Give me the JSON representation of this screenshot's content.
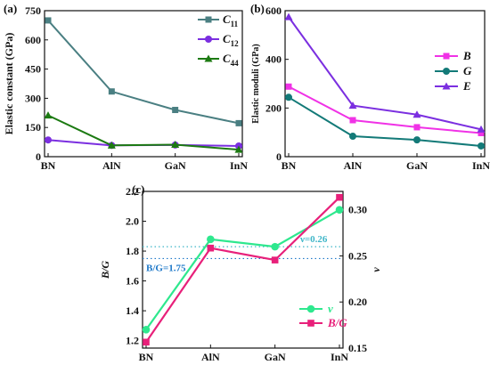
{
  "chart_data": [
    {
      "panel_label": "(a)",
      "type": "line",
      "categories": [
        "BN",
        "AlN",
        "GaN",
        "InN"
      ],
      "ylabel": "Elastic constant (GPa)",
      "ylim": [
        0,
        750
      ],
      "yticks": [
        0,
        150,
        300,
        450,
        600,
        750
      ],
      "legend_position": "top-right",
      "series": [
        {
          "name": "C11",
          "label_main": "C",
          "label_sub": "11",
          "color": "#4a7f82",
          "marker": "square",
          "values": [
            700,
            335,
            240,
            172
          ]
        },
        {
          "name": "C12",
          "label_main": "C",
          "label_sub": "12",
          "color": "#7b2fe0",
          "marker": "circle",
          "values": [
            86,
            58,
            60,
            55
          ]
        },
        {
          "name": "C44",
          "label_main": "C",
          "label_sub": "44",
          "color": "#1c7a12",
          "marker": "triangle",
          "values": [
            212,
            58,
            62,
            36
          ]
        }
      ]
    },
    {
      "panel_label": "(b)",
      "type": "line",
      "categories": [
        "BN",
        "AlN",
        "GaN",
        "InN"
      ],
      "ylabel": "Elastic moduli (GPa)",
      "ylim": [
        0,
        600
      ],
      "yticks": [
        0,
        200,
        400,
        600
      ],
      "legend_position": "right",
      "series": [
        {
          "name": "B",
          "color": "#f032e6",
          "marker": "square",
          "values": [
            288,
            150,
            121,
            97
          ]
        },
        {
          "name": "G",
          "color": "#137a78",
          "marker": "circle",
          "values": [
            244,
            84,
            69,
            44
          ]
        },
        {
          "name": "E",
          "color": "#7b2fe0",
          "marker": "triangle",
          "values": [
            574,
            210,
            173,
            112
          ]
        }
      ]
    },
    {
      "panel_label": "(c)",
      "type": "line",
      "categories": [
        "BN",
        "AlN",
        "GaN",
        "InN"
      ],
      "ylabel_left": "B/G",
      "ylabel_right": "ν",
      "ylim_left": [
        1.15,
        2.2
      ],
      "ylim_right": [
        0.15,
        0.32
      ],
      "yticks_left": [
        1.2,
        1.4,
        1.6,
        1.8,
        2.0,
        2.2
      ],
      "yticks_left_labels": [
        "1.2",
        "1.4",
        "1.6",
        "1.8",
        "2.0",
        "2.2"
      ],
      "yticks_right": [
        0.15,
        0.2,
        0.25,
        0.3
      ],
      "yticks_right_labels": [
        "0.15",
        "0.20",
        "0.25",
        "0.30"
      ],
      "legend_position": "bottom-right",
      "series": [
        {
          "name": "ν",
          "axis": "right",
          "color": "#2ee88e",
          "marker": "circle",
          "values": [
            0.17,
            0.268,
            0.26,
            0.3
          ]
        },
        {
          "name": "B/G",
          "axis": "left",
          "color": "#e8207a",
          "marker": "square",
          "values": [
            1.19,
            1.82,
            1.74,
            2.16
          ]
        }
      ],
      "reference_lines": [
        {
          "axis": "right",
          "value": 0.26,
          "label": "ν=0.26",
          "color": "#3fb6c8"
        },
        {
          "axis": "left",
          "value": 1.75,
          "label": "B/G=1.75",
          "color": "#1e78c8"
        }
      ]
    }
  ]
}
